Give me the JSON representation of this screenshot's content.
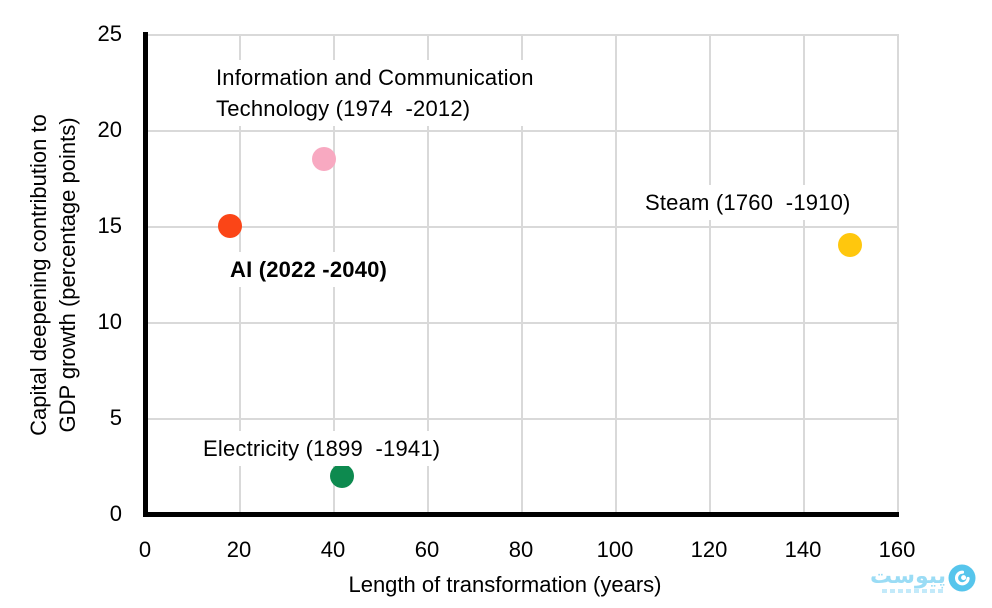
{
  "chart_data": {
    "type": "scatter",
    "title": "",
    "xlabel": "Length of transformation (years)",
    "ylabel": "Capital deepening contribution to GDP growth (percentage points)",
    "ylabel_lines": [
      "Capital deepening contribution to",
      "GDP growth (percentage points)"
    ],
    "xlim": [
      0,
      160
    ],
    "ylim": [
      0,
      25
    ],
    "x_ticks": [
      0,
      20,
      40,
      60,
      80,
      100,
      120,
      140,
      160
    ],
    "y_ticks": [
      0,
      5,
      10,
      15,
      20,
      25
    ],
    "grid": "on",
    "gridline_color": "#d9d9d9",
    "axis_color": "#000000",
    "legend": "none",
    "points": [
      {
        "name": "ict",
        "label": "Information and Communication\nTechnology (1974  -2012)",
        "x": 38,
        "y": 18.5,
        "color": "#f8a9c1",
        "bold": false
      },
      {
        "name": "ai",
        "label": "AI (2022 -2040)",
        "x": 18,
        "y": 15,
        "color": "#fb4517",
        "bold": true
      },
      {
        "name": "steam",
        "label": "Steam (1760  -1910)",
        "x": 150,
        "y": 14,
        "color": "#ffc70d",
        "bold": false
      },
      {
        "name": "electricity",
        "label": "Electricity (1899  -1941)",
        "x": 42,
        "y": 2,
        "color": "#0d8a4f",
        "bold": false
      }
    ]
  },
  "watermark": {
    "text": "پیوست",
    "text_color": "#9adcf5",
    "icon": "peivast-swirl-icon",
    "icon_color": "#56c5ec"
  }
}
